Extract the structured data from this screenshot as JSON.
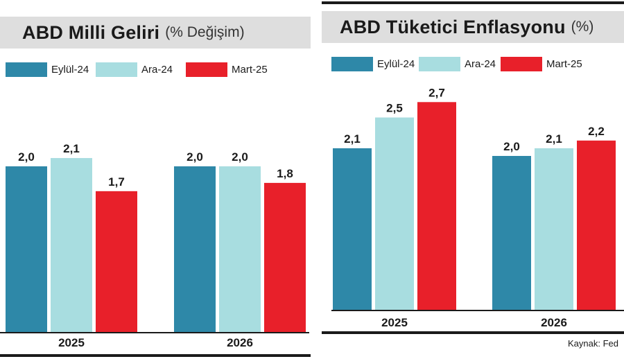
{
  "chart_data": [
    {
      "type": "bar",
      "title": "ABD Milli Geliri",
      "subtitle": "(% Değişim)",
      "categories": [
        "2025",
        "2026"
      ],
      "series": [
        {
          "name": "Eylül-24",
          "values": [
            2.0,
            2.0
          ],
          "labels": [
            "2,0",
            "2,0"
          ]
        },
        {
          "name": "Ara-24",
          "values": [
            2.1,
            2.0
          ],
          "labels": [
            "2,1",
            "2,0"
          ]
        },
        {
          "name": "Mart-25",
          "values": [
            1.7,
            1.8
          ],
          "labels": [
            "1,7",
            "1,8"
          ]
        }
      ],
      "ylim": [
        0,
        3.0
      ],
      "colors": [
        "#2e88a8",
        "#a8dde0",
        "#e8202a"
      ],
      "grid": false,
      "legend": "top"
    },
    {
      "type": "bar",
      "title": "ABD Tüketici Enflasyonu",
      "subtitle": "(%)",
      "categories": [
        "2025",
        "2026"
      ],
      "series": [
        {
          "name": "Eylül-24",
          "values": [
            2.1,
            2.0
          ],
          "labels": [
            "2,1",
            "2,0"
          ]
        },
        {
          "name": "Ara-24",
          "values": [
            2.5,
            2.1
          ],
          "labels": [
            "2,5",
            "2,1"
          ]
        },
        {
          "name": "Mart-25",
          "values": [
            2.7,
            2.2
          ],
          "labels": [
            "2,7",
            "2,2"
          ]
        }
      ],
      "ylim": [
        0,
        2.7
      ],
      "colors": [
        "#2e88a8",
        "#a8dde0",
        "#e8202a"
      ],
      "grid": false,
      "legend": "top"
    }
  ],
  "source": "Kaynak: Fed"
}
